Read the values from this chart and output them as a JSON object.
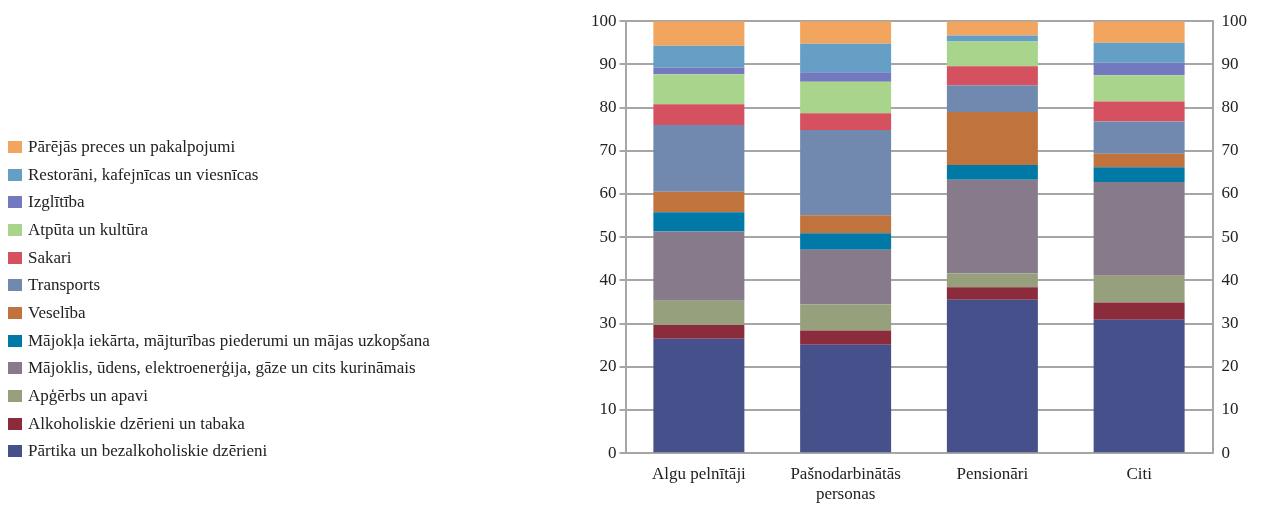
{
  "chart_data": {
    "type": "bar",
    "stacked": true,
    "categories": [
      "Algu pelnītāji",
      "Pašnodarbinātās personas",
      "Pensionāri",
      "Citi"
    ],
    "series": [
      {
        "name": "Pārtika un bezalkoholiskie dzērieni",
        "color": "#46508a",
        "values": [
          26.5,
          25.1,
          35.5,
          30.9
        ]
      },
      {
        "name": "Alkoholiskie dzērieni un tabaka",
        "color": "#8b2c3c",
        "values": [
          3.2,
          3.3,
          2.9,
          4.0
        ]
      },
      {
        "name": "Apģērbs un apavi",
        "color": "#97a07d",
        "values": [
          5.6,
          6.0,
          3.2,
          6.2
        ]
      },
      {
        "name": "Mājoklis, ūdens, elektroenerģija, gāze un cits kurināmais",
        "color": "#877a8a",
        "values": [
          16.0,
          12.7,
          21.7,
          21.7
        ]
      },
      {
        "name": "Mājokļa iekārta, mājturības piederumi un mājas uzkopšana",
        "color": "#0079a6",
        "values": [
          4.5,
          3.8,
          3.4,
          3.4
        ]
      },
      {
        "name": "Veselība",
        "color": "#c0733d",
        "values": [
          4.7,
          4.2,
          12.3,
          3.1
        ]
      },
      {
        "name": "Transports",
        "color": "#7189ae",
        "values": [
          15.5,
          19.7,
          6.2,
          7.5
        ]
      },
      {
        "name": "Sakari",
        "color": "#d6515f",
        "values": [
          4.8,
          3.9,
          4.4,
          4.6
        ]
      },
      {
        "name": "Atpūta un kultūra",
        "color": "#a8d48c",
        "values": [
          6.9,
          7.3,
          5.7,
          6.1
        ]
      },
      {
        "name": "Izglītība",
        "color": "#7379be",
        "values": [
          1.6,
          2.2,
          0,
          2.9
        ]
      },
      {
        "name": "Restorāni, kafejnīcas un viesnīcas",
        "color": "#659fc5",
        "values": [
          5.0,
          6.6,
          1.4,
          4.6
        ]
      },
      {
        "name": "Pārējās preces un pakalpojumi",
        "color": "#f2a55f",
        "values": [
          5.7,
          5.2,
          3.3,
          5.0
        ]
      }
    ],
    "ylim": [
      0,
      100
    ],
    "yticks": [
      0,
      10,
      20,
      30,
      40,
      50,
      60,
      70,
      80,
      90,
      100
    ],
    "y2lim": [
      0,
      100
    ],
    "y2ticks": [
      0,
      10,
      20,
      30,
      40,
      50,
      60,
      70,
      80,
      90,
      100
    ],
    "grid": "y",
    "legend": "left"
  }
}
